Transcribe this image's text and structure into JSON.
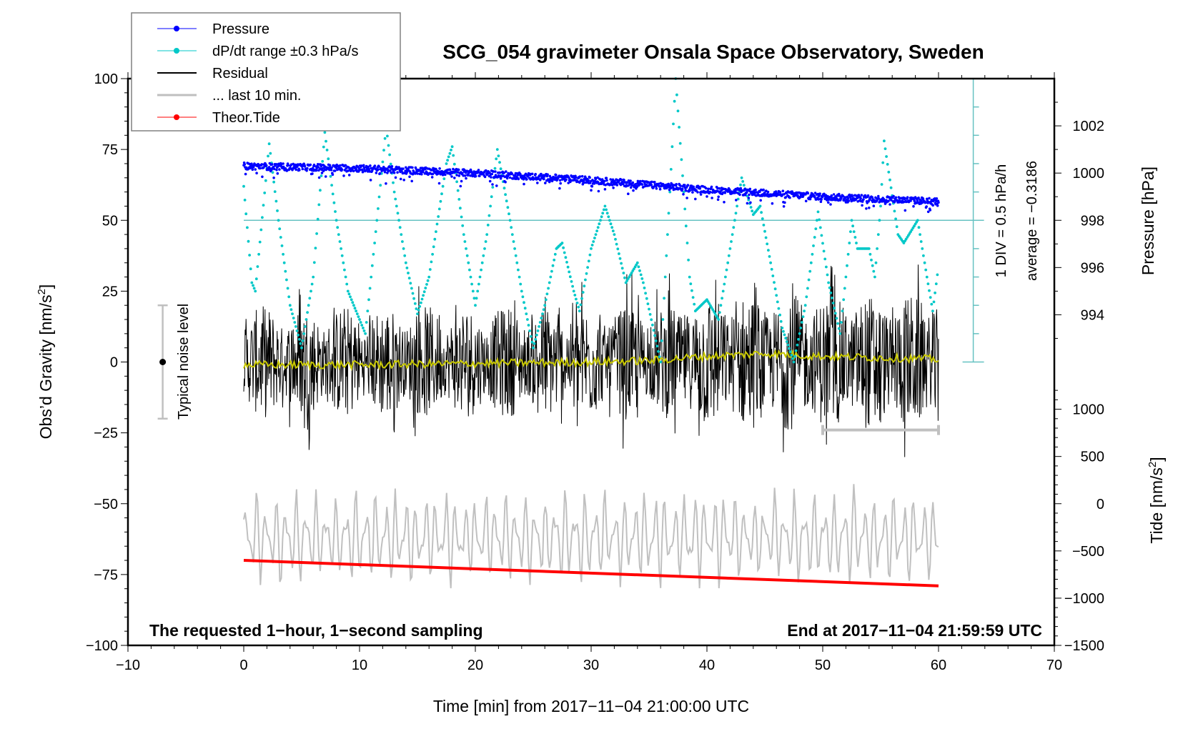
{
  "chart_data": {
    "type": "line",
    "title": "SCG_054 gravimeter Onsala Space Observatory, Sweden",
    "xlabel": "Time [min] from 2017−11−04 21:00:00 UTC",
    "ylabel": "Obs'd Gravity [nm/s²]",
    "ylabel_parts": {
      "main": "Obs’d Gravity [nm/s",
      "sup": "2",
      "end": "]"
    },
    "xlim": [
      -10,
      70
    ],
    "ylim": [
      -100,
      100
    ],
    "xticks": [
      -10,
      0,
      10,
      20,
      30,
      40,
      50,
      60,
      70
    ],
    "xtick_labels": [
      "−10",
      "0",
      "10",
      "20",
      "30",
      "40",
      "50",
      "60",
      "70"
    ],
    "yticks": [
      -100,
      -75,
      -50,
      -25,
      0,
      25,
      50,
      75,
      100
    ],
    "ytick_labels": [
      "−100",
      "−75",
      "−50",
      "−25",
      "0",
      "25",
      "50",
      "75",
      "100"
    ],
    "grid": false,
    "legend_position": "top-left",
    "right_axes": {
      "pressure": {
        "label": "Pressure [hPa]",
        "ticks": [
          994,
          996,
          998,
          1000,
          1002
        ],
        "tick_labels": [
          "994",
          "996",
          "998",
          "1000",
          "1002"
        ],
        "mapping": {
          "value_at_grav_50": 998,
          "hpa_per_grav_unit": 0.12
        }
      },
      "tide": {
        "label_main": "Tide [nm/s",
        "label_sup": "2",
        "label_end": "]",
        "ticks": [
          -1500,
          -1000,
          -500,
          0,
          500,
          1000
        ],
        "tick_labels": [
          "−1500",
          "−1000",
          "−500",
          "0",
          "500",
          "1000"
        ],
        "mapping": {
          "value_at_grav_minus50": 0,
          "nms2_per_grav_unit": 30
        }
      }
    },
    "series": [
      {
        "name": "Pressure",
        "color": "#0000ff",
        "style": "points",
        "unit": "hPa",
        "x": [
          0,
          10,
          20,
          30,
          40,
          50,
          60
        ],
        "values": [
          1000.3,
          1000.2,
          1000.0,
          999.7,
          999.3,
          999.0,
          998.8
        ]
      },
      {
        "name": "dP/dt range ±0.3 hPa/s",
        "color": "#00c8c8",
        "style": "points",
        "unit": "grav-axis units",
        "x": [
          0,
          0.7,
          1,
          2.2,
          3,
          4,
          5,
          6,
          7,
          8,
          9,
          10.5,
          11.5,
          12.3,
          13,
          14,
          15,
          16,
          17.5,
          18,
          19,
          20,
          21,
          21.9,
          23,
          24,
          25,
          26,
          27,
          27.5,
          28.5,
          29,
          30,
          31.2,
          32,
          33,
          34,
          34.5,
          36,
          36.8,
          37.3,
          38,
          38.5,
          39,
          40,
          41,
          42,
          43,
          44,
          44.6,
          45.5,
          46.5,
          47.5,
          48.5,
          49.6,
          50.5,
          51.5,
          52.5,
          53,
          54,
          54.5,
          55,
          55.3,
          56.5,
          57,
          58.2,
          59,
          59.5,
          60
        ],
        "values": [
          62,
          28,
          25,
          77,
          50,
          20,
          5,
          30,
          81,
          50,
          25,
          10,
          50,
          83,
          60,
          35,
          17,
          30,
          70,
          76,
          45,
          20,
          45,
          75,
          50,
          25,
          5,
          20,
          40,
          42,
          25,
          18,
          40,
          55,
          45,
          28,
          35,
          28,
          0,
          60,
          100,
          60,
          30,
          18,
          22,
          15,
          40,
          65,
          52,
          55,
          35,
          12,
          0,
          20,
          53,
          28,
          10,
          50,
          40,
          40,
          30,
          55,
          78,
          45,
          42,
          50,
          30,
          18,
          34
        ]
      },
      {
        "name": "Residual",
        "color": "#000000",
        "style": "line",
        "unit": "nm/s²",
        "x_range": [
          0,
          60
        ],
        "amplitude_approx": 20,
        "mean_approx": 0
      },
      {
        "name": "Residual smoothed",
        "color": "#c8c800",
        "style": "line",
        "unit": "nm/s²",
        "x": [
          0,
          10,
          20,
          30,
          35,
          40,
          45,
          50,
          55,
          60
        ],
        "values": [
          -1,
          -1,
          -0.5,
          0,
          0.5,
          2,
          3,
          2,
          1.5,
          1
        ]
      },
      {
        "name": "... last 10 min.",
        "color": "#c0c0c0",
        "style": "line",
        "unit": "grav-axis units (offset)",
        "x_range": [
          0,
          60
        ],
        "center_approx": -62,
        "amplitude_approx": 18
      },
      {
        "name": "Theor.Tide",
        "color": "#ff0000",
        "style": "line",
        "unit": "nm/s²",
        "x": [
          0,
          60
        ],
        "values": [
          -600,
          -870
        ]
      }
    ],
    "annotations": {
      "noise_label": "Typical noise level",
      "noise_range": [
        -20,
        20
      ],
      "noise_x": -7,
      "last10_bar": {
        "x_from": 50,
        "x_to": 60,
        "y": -24
      },
      "cyan_scale_x": 63,
      "cyan_scale_range": [
        0,
        100
      ],
      "cyan_ref_level": 50,
      "div_text": "1 DIV = 0.5 hPa/h",
      "average_text": "average = −0.3186",
      "bottom_left": "The requested 1−hour, 1−second sampling",
      "bottom_right": "End at 2017−11−04 21:59:59 UTC"
    },
    "legend": [
      {
        "label": "Pressure",
        "color": "#0000ff",
        "marker": "dot"
      },
      {
        "label": "dP/dt range ±0.3 hPa/s",
        "color": "#00c8c8",
        "marker": "dot"
      },
      {
        "label": "Residual",
        "color": "#000000",
        "marker": "line"
      },
      {
        "label": "... last 10 min.",
        "color": "#bfbfbf",
        "marker": "thickline"
      },
      {
        "label": "Theor.Tide",
        "color": "#ff0000",
        "marker": "dot"
      }
    ]
  }
}
